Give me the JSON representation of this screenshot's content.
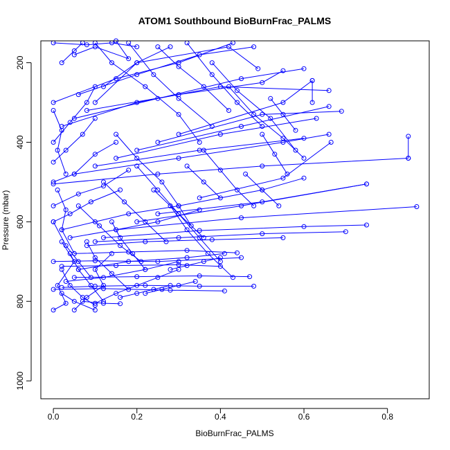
{
  "chart_data": {
    "type": "line",
    "title": "ATOM1 Southbound BioBurnFrac_PALMS",
    "xlabel": "BioBurnFrac_PALMS",
    "ylabel": "Pressure (mbar)",
    "xlim": [
      -0.03,
      0.9
    ],
    "ylim": [
      1045,
      145
    ],
    "y_reversed": true,
    "x_ticks": [
      0.0,
      0.2,
      0.4,
      0.6,
      0.8
    ],
    "x_tick_labels": [
      "0.0",
      "0.2",
      "0.4",
      "0.6",
      "0.8"
    ],
    "y_ticks": [
      200,
      400,
      600,
      800,
      1000
    ],
    "y_tick_labels": [
      "200",
      "400",
      "600",
      "800",
      "1000"
    ],
    "grid": false,
    "series_color": "#0000ff",
    "marker": "open-circle",
    "series": [
      {
        "x": [
          0.0,
          0.03,
          0.01,
          0.05,
          0.02
        ],
        "y": [
          822,
          805,
          760,
          700,
          650
        ]
      },
      {
        "x": [
          0.05,
          0.08,
          0.12,
          0.1,
          0.14
        ],
        "y": [
          822,
          790,
          760,
          720,
          680
        ]
      },
      {
        "x": [
          0.1,
          0.15,
          0.2,
          0.25,
          0.3
        ],
        "y": [
          805,
          780,
          760,
          740,
          720
        ]
      },
      {
        "x": [
          0.02,
          0.1,
          0.22,
          0.35,
          0.48
        ],
        "y": [
          765,
          762,
          760,
          762,
          762
        ]
      },
      {
        "x": [
          0.0,
          0.12,
          0.28,
          0.41
        ],
        "y": [
          770,
          768,
          772,
          774
        ]
      },
      {
        "x": [
          0.05,
          0.2,
          0.35,
          0.47
        ],
        "y": [
          740,
          738,
          736,
          738
        ]
      },
      {
        "x": [
          0.02,
          0.15,
          0.3,
          0.4
        ],
        "y": [
          712,
          710,
          708,
          712
        ]
      },
      {
        "x": [
          0.0,
          0.1,
          0.25,
          0.45
        ],
        "y": [
          700,
          698,
          700,
          690
        ]
      },
      {
        "x": [
          0.05,
          0.18,
          0.32,
          0.44
        ],
        "y": [
          680,
          676,
          672,
          678
        ]
      },
      {
        "x": [
          0.08,
          0.22,
          0.38,
          0.55
        ],
        "y": [
          660,
          650,
          645,
          640
        ]
      },
      {
        "x": [
          0.1,
          0.3,
          0.5,
          0.7
        ],
        "y": [
          650,
          640,
          630,
          625
        ]
      },
      {
        "x": [
          0.12,
          0.35,
          0.6,
          0.75
        ],
        "y": [
          640,
          622,
          612,
          608
        ]
      },
      {
        "x": [
          0.15,
          0.45,
          0.87
        ],
        "y": [
          620,
          590,
          562
        ]
      },
      {
        "x": [
          0.2,
          0.45,
          0.75
        ],
        "y": [
          600,
          560,
          505
        ]
      },
      {
        "x": [
          0.25,
          0.5,
          0.75
        ],
        "y": [
          580,
          550,
          505
        ]
      },
      {
        "x": [
          0.3,
          0.5,
          0.6
        ],
        "y": [
          560,
          520,
          490
        ]
      },
      {
        "x": [
          0.35,
          0.55,
          0.665
        ],
        "y": [
          540,
          490,
          400
        ]
      },
      {
        "x": [
          0.0,
          0.25,
          0.5,
          0.85
        ],
        "y": [
          505,
          480,
          460,
          440
        ]
      },
      {
        "x": [
          0.85,
          0.85
        ],
        "y": [
          385,
          440
        ]
      },
      {
        "x": [
          0.05,
          0.3,
          0.55,
          0.66
        ],
        "y": [
          480,
          440,
          400,
          380
        ]
      },
      {
        "x": [
          0.1,
          0.35,
          0.6
        ],
        "y": [
          460,
          420,
          390
        ]
      },
      {
        "x": [
          0.15,
          0.4,
          0.63
        ],
        "y": [
          440,
          380,
          340
        ]
      },
      {
        "x": [
          0.2,
          0.45,
          0.66
        ],
        "y": [
          420,
          360,
          310
        ]
      },
      {
        "x": [
          0.25,
          0.5,
          0.69
        ],
        "y": [
          400,
          330,
          322
        ]
      },
      {
        "x": [
          0.3,
          0.55,
          0.62
        ],
        "y": [
          380,
          300,
          245
        ]
      },
      {
        "x": [
          0.62,
          0.62
        ],
        "y": [
          245,
          300
        ]
      },
      {
        "x": [
          0.02,
          0.2,
          0.4,
          0.66
        ],
        "y": [
          360,
          300,
          260,
          270
        ]
      },
      {
        "x": [
          0.05,
          0.25,
          0.45,
          0.6
        ],
        "y": [
          340,
          290,
          240,
          215
        ]
      },
      {
        "x": [
          0.08,
          0.3,
          0.5,
          0.55
        ],
        "y": [
          320,
          280,
          250,
          220
        ]
      },
      {
        "x": [
          0.1,
          0.2,
          0.42,
          0.49
        ],
        "y": [
          300,
          200,
          160,
          215
        ]
      },
      {
        "x": [
          0.0,
          0.15,
          0.3,
          0.43
        ],
        "y": [
          300,
          240,
          200,
          150
        ]
      },
      {
        "x": [
          0.06,
          0.2,
          0.35,
          0.48
        ],
        "y": [
          280,
          230,
          180,
          160
        ]
      },
      {
        "x": [
          0.12,
          0.2,
          0.28
        ],
        "y": [
          260,
          200,
          160
        ]
      },
      {
        "x": [
          0.0,
          0.08,
          0.14,
          0.2
        ],
        "y": [
          150,
          155,
          150,
          160
        ]
      },
      {
        "x": [
          0.05,
          0.1,
          0.18,
          0.15
        ],
        "y": [
          180,
          160,
          190,
          145
        ]
      },
      {
        "x": [
          0.02,
          0.05,
          0.07
        ],
        "y": [
          200,
          170,
          150
        ]
      },
      {
        "x": [
          0.0,
          0.04,
          0.08,
          0.1
        ],
        "y": [
          400,
          350,
          300,
          260
        ]
      },
      {
        "x": [
          0.0,
          0.03,
          0.07,
          0.1
        ],
        "y": [
          450,
          420,
          380,
          340
        ]
      },
      {
        "x": [
          0.0,
          0.05,
          0.1,
          0.15
        ],
        "y": [
          500,
          480,
          430,
          400
        ]
      },
      {
        "x": [
          0.0,
          0.06,
          0.12,
          0.18
        ],
        "y": [
          560,
          530,
          510,
          470
        ]
      },
      {
        "x": [
          0.0,
          0.04,
          0.09,
          0.16
        ],
        "y": [
          600,
          580,
          550,
          520
        ]
      },
      {
        "x": [
          0.02,
          0.1,
          0.18,
          0.3
        ],
        "y": [
          620,
          600,
          580,
          560
        ]
      },
      {
        "x": [
          0.04,
          0.15,
          0.25,
          0.35
        ],
        "y": [
          640,
          620,
          600,
          570
        ]
      },
      {
        "x": [
          0.06,
          0.18,
          0.32,
          0.41
        ],
        "y": [
          720,
          700,
          690,
          680
        ]
      },
      {
        "x": [
          0.03,
          0.12,
          0.22,
          0.3
        ],
        "y": [
          750,
          740,
          720,
          700
        ]
      },
      {
        "x": [
          0.1,
          0.14,
          0.22,
          0.3,
          0.35
        ],
        "y": [
          150,
          200,
          260,
          330,
          400
        ]
      },
      {
        "x": [
          0.18,
          0.24,
          0.3,
          0.38
        ],
        "y": [
          150,
          230,
          290,
          360
        ]
      },
      {
        "x": [
          0.25,
          0.3,
          0.36,
          0.42
        ],
        "y": [
          160,
          210,
          260,
          320
        ]
      },
      {
        "x": [
          0.32,
          0.38,
          0.44,
          0.5
        ],
        "y": [
          150,
          230,
          300,
          360
        ]
      },
      {
        "x": [
          0.38,
          0.44,
          0.52,
          0.58
        ],
        "y": [
          200,
          270,
          340,
          420
        ]
      },
      {
        "x": [
          0.42,
          0.48,
          0.55,
          0.6
        ],
        "y": [
          260,
          330,
          390,
          440
        ]
      },
      {
        "x": [
          0.15,
          0.2,
          0.26,
          0.3,
          0.33
        ],
        "y": [
          380,
          440,
          500,
          560,
          610
        ]
      },
      {
        "x": [
          0.2,
          0.25,
          0.3,
          0.36
        ],
        "y": [
          460,
          520,
          580,
          640
        ]
      },
      {
        "x": [
          0.24,
          0.3,
          0.35,
          0.4
        ],
        "y": [
          520,
          580,
          640,
          700
        ]
      },
      {
        "x": [
          0.28,
          0.32,
          0.37,
          0.43
        ],
        "y": [
          560,
          620,
          680,
          740
        ]
      },
      {
        "x": [
          0.12,
          0.17,
          0.22,
          0.27
        ],
        "y": [
          500,
          550,
          600,
          650
        ]
      },
      {
        "x": [
          0.06,
          0.11,
          0.16,
          0.21
        ],
        "y": [
          560,
          610,
          660,
          700
        ]
      },
      {
        "x": [
          0.08,
          0.1,
          0.14,
          0.18
        ],
        "y": [
          650,
          690,
          730,
          770
        ]
      },
      {
        "x": [
          0.04,
          0.06,
          0.09,
          0.12
        ],
        "y": [
          680,
          720,
          760,
          800
        ]
      },
      {
        "x": [
          0.02,
          0.04,
          0.07,
          0.1
        ],
        "y": [
          720,
          760,
          790,
          810
        ]
      },
      {
        "x": [
          0.0,
          0.03,
          0.06,
          0.09
        ],
        "y": [
          600,
          660,
          700,
          740
        ]
      },
      {
        "x": [
          0.14,
          0.16,
          0.19,
          0.22
        ],
        "y": [
          600,
          640,
          680,
          720
        ]
      },
      {
        "x": [
          0.46,
          0.5,
          0.54
        ],
        "y": [
          480,
          520,
          560
        ]
      },
      {
        "x": [
          0.5,
          0.53,
          0.56
        ],
        "y": [
          380,
          430,
          480
        ]
      },
      {
        "x": [
          0.52,
          0.55,
          0.58
        ],
        "y": [
          290,
          330,
          370
        ]
      },
      {
        "x": [
          0.36,
          0.4,
          0.44,
          0.48
        ],
        "y": [
          420,
          470,
          520,
          560
        ]
      },
      {
        "x": [
          0.32,
          0.36,
          0.4
        ],
        "y": [
          460,
          500,
          540
        ]
      },
      {
        "x": [
          0.0,
          0.02,
          0.01,
          0.03
        ],
        "y": [
          320,
          370,
          420,
          480
        ]
      },
      {
        "x": [
          0.01,
          0.03,
          0.02,
          0.05
        ],
        "y": [
          520,
          570,
          620,
          680
        ]
      },
      {
        "x": [
          0.02,
          0.05,
          0.1
        ],
        "y": [
          780,
          800,
          822
        ]
      },
      {
        "x": [
          0.07,
          0.12,
          0.16
        ],
        "y": [
          800,
          805,
          806
        ]
      },
      {
        "x": [
          0.16,
          0.2,
          0.24,
          0.28
        ],
        "y": [
          790,
          780,
          770,
          760
        ]
      },
      {
        "x": [
          0.22,
          0.26,
          0.3,
          0.34
        ],
        "y": [
          780,
          770,
          760,
          750
        ]
      },
      {
        "x": [
          0.28,
          0.32,
          0.36,
          0.4
        ],
        "y": [
          720,
          710,
          700,
          690
        ]
      }
    ]
  }
}
